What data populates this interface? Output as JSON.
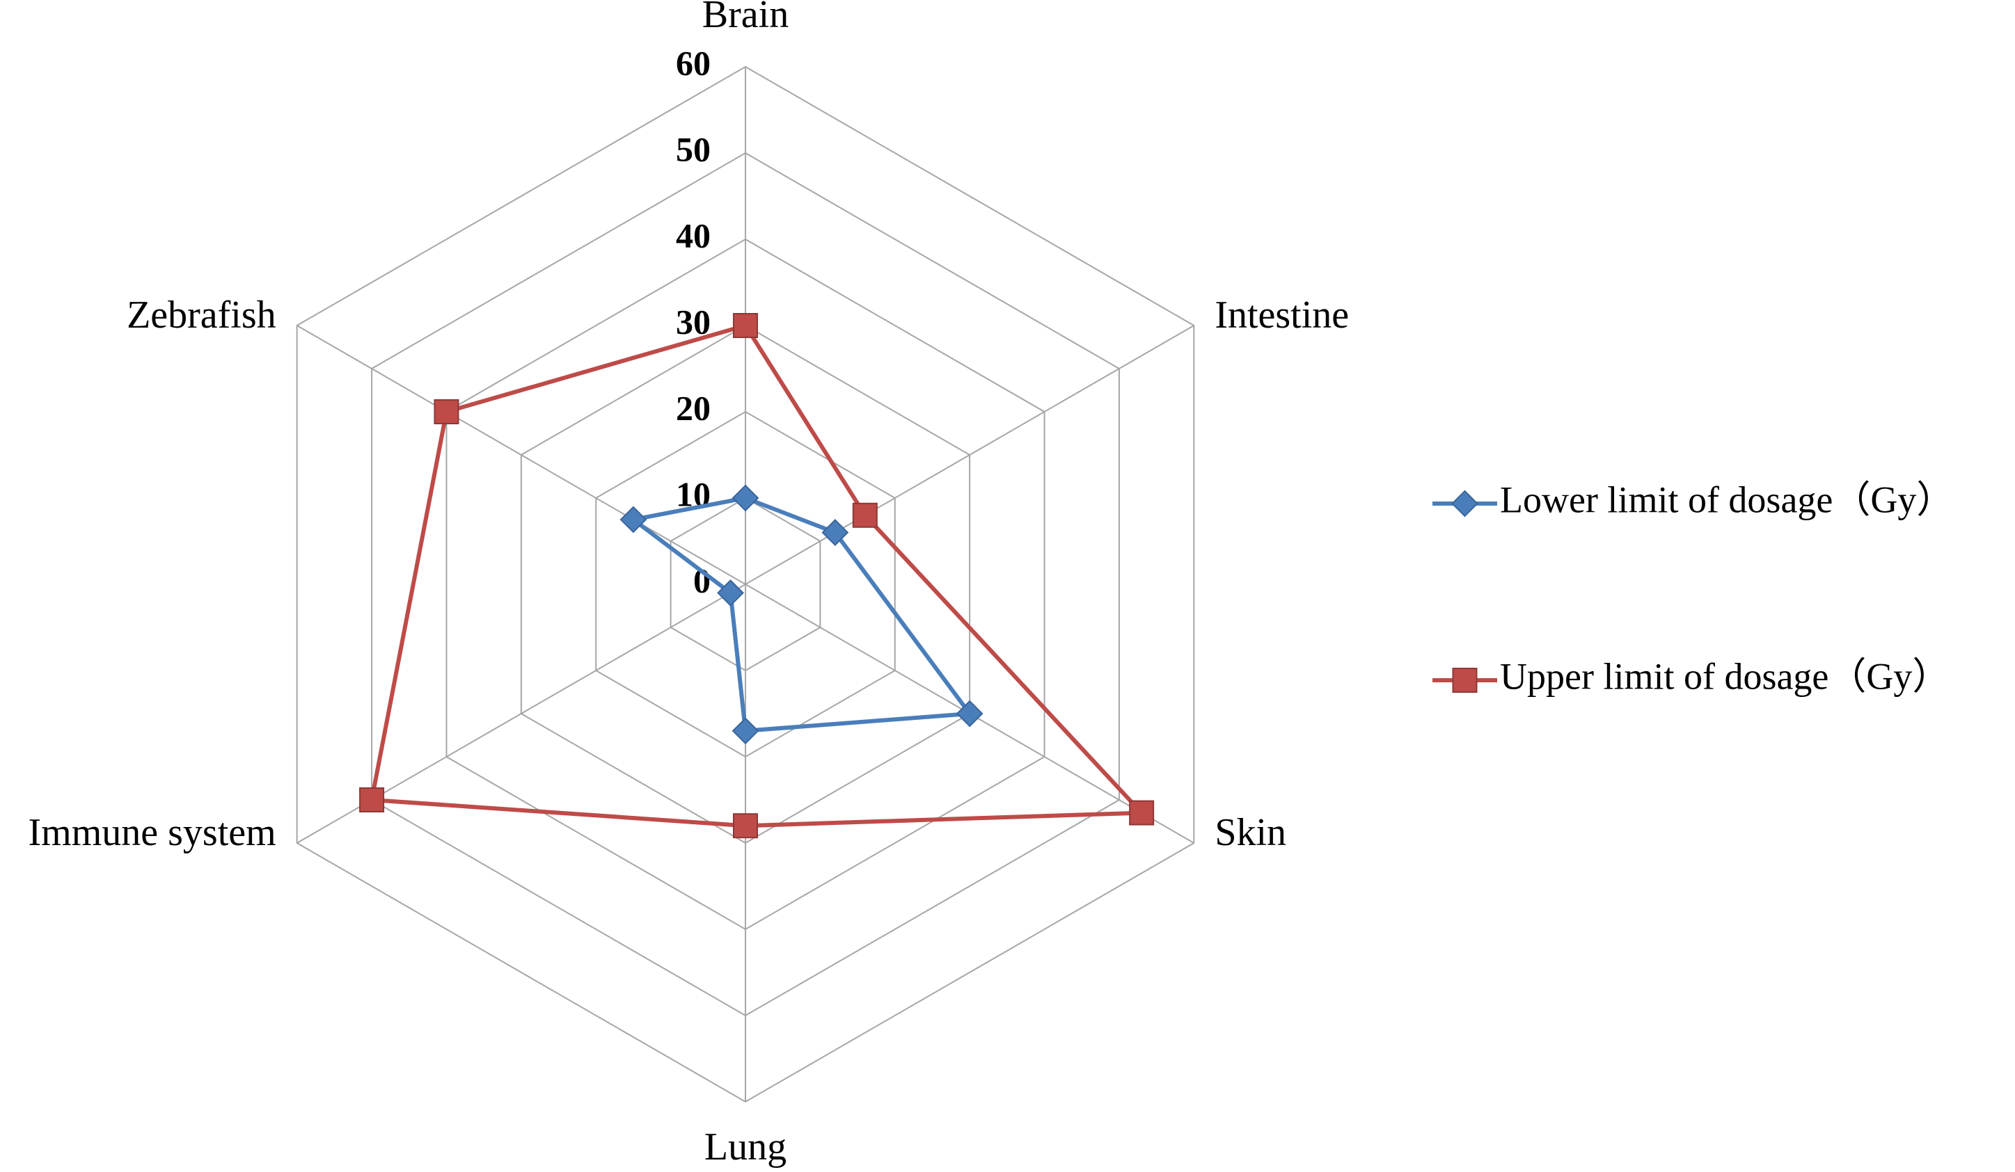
{
  "chart_data": {
    "type": "radar",
    "categories": [
      "Brain",
      "Intestine",
      "Skin",
      "Lung",
      "Immune system",
      "Zebrafish"
    ],
    "series": [
      {
        "name": "Lower limit of dosage（Gy）",
        "color": "#4a7ebb",
        "marker": "diamond",
        "values": [
          10,
          12,
          30,
          17,
          2,
          15
        ]
      },
      {
        "name": "Upper limit of dosage（Gy）",
        "color": "#be4b48",
        "marker": "square",
        "values": [
          30,
          16,
          53,
          28,
          50,
          40
        ]
      }
    ],
    "rlim": [
      0,
      60
    ],
    "rticks": [
      0,
      10,
      20,
      30,
      40,
      50,
      60
    ],
    "grid": true,
    "legend": "right"
  }
}
